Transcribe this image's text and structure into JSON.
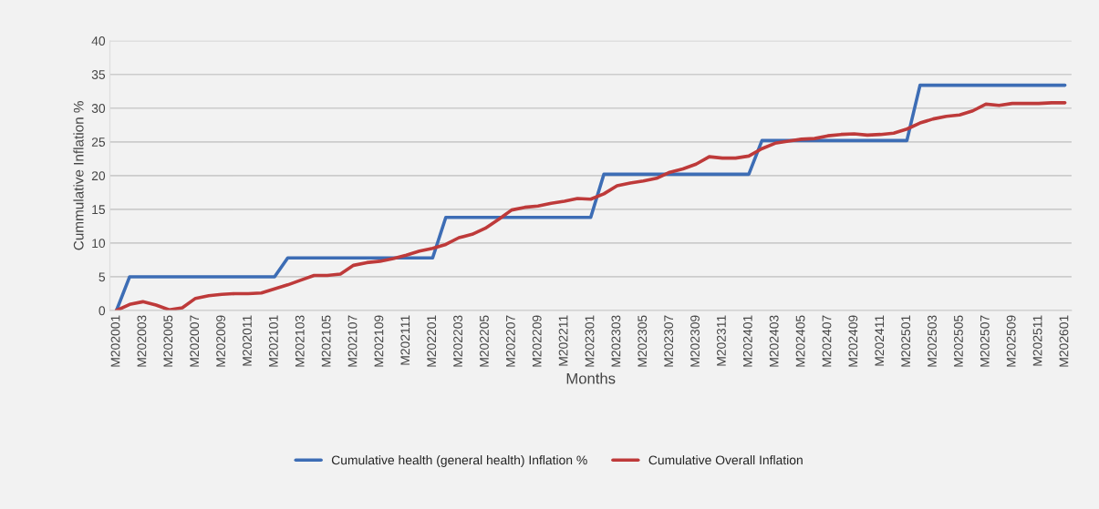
{
  "chart_data": {
    "type": "line",
    "xlabel": "Months",
    "ylabel": "Cummulative Inflation %",
    "categories": [
      "M202001",
      null,
      "M202003",
      null,
      "M202005",
      null,
      "M202007",
      null,
      "M202009",
      null,
      "M202011",
      null,
      "M202101",
      null,
      "M202103",
      null,
      "M202105",
      null,
      "M202107",
      null,
      "M202109",
      null,
      "M202111",
      null,
      "M202201",
      null,
      "M202203",
      null,
      "M202205",
      null,
      "M202207",
      null,
      "M202209",
      null,
      "M202211",
      null,
      "M202301",
      null,
      "M202303",
      null,
      "M202305",
      null,
      "M202307",
      null,
      "M202309",
      null,
      "M202311",
      null,
      "M202401",
      null,
      "M202403",
      null,
      "M202405",
      null,
      "M202407",
      null,
      "M202409",
      null,
      "M202411",
      null,
      "M202501",
      null,
      "M202503",
      null,
      "M202505",
      null,
      "M202507",
      null,
      "M202509",
      null,
      "M202511",
      null,
      "M202601"
    ],
    "series": [
      {
        "name": "Cumulative health (general health) Inflation %",
        "color": "#3d6db5",
        "values": [
          0,
          5,
          5,
          5,
          5,
          5,
          5,
          5,
          5,
          5,
          5,
          5,
          5,
          7.8,
          7.8,
          7.8,
          7.8,
          7.8,
          7.8,
          7.8,
          7.8,
          7.8,
          7.8,
          7.8,
          7.8,
          13.8,
          13.8,
          13.8,
          13.8,
          13.8,
          13.8,
          13.8,
          13.8,
          13.8,
          13.8,
          13.8,
          13.8,
          20.2,
          20.2,
          20.2,
          20.2,
          20.2,
          20.2,
          20.2,
          20.2,
          20.2,
          20.2,
          20.2,
          20.2,
          25.2,
          25.2,
          25.2,
          25.2,
          25.2,
          25.2,
          25.2,
          25.2,
          25.2,
          25.2,
          25.2,
          25.2,
          33.4,
          33.4,
          33.4,
          33.4,
          33.4,
          33.4,
          33.4,
          33.4,
          33.4,
          33.4,
          33.4,
          33.4
        ]
      },
      {
        "name": "Cumulative Overall Inflation",
        "color": "#be3a3a",
        "values": [
          0,
          0.9,
          1.3,
          0.8,
          0.1,
          0.4,
          1.8,
          2.2,
          2.4,
          2.5,
          2.5,
          2.6,
          3.2,
          3.8,
          4.5,
          5.2,
          5.2,
          5.4,
          6.7,
          7.1,
          7.3,
          7.7,
          8.2,
          8.8,
          9.2,
          9.8,
          10.8,
          11.3,
          12.2,
          13.5,
          14.9,
          15.3,
          15.5,
          15.9,
          16.2,
          16.6,
          16.5,
          17.3,
          18.5,
          18.9,
          19.2,
          19.6,
          20.5,
          21.0,
          21.7,
          22.8,
          22.6,
          22.6,
          22.9,
          24.0,
          24.8,
          25.1,
          25.4,
          25.5,
          25.9,
          26.1,
          26.2,
          26.0,
          26.1,
          26.3,
          26.9,
          27.8,
          28.4,
          28.8,
          29.0,
          29.6,
          30.6,
          30.4,
          30.7,
          30.7,
          30.7,
          30.8,
          30.8
        ]
      }
    ],
    "ylim": [
      0,
      40
    ],
    "yticks": [
      0,
      5,
      10,
      15,
      20,
      25,
      30,
      35,
      40
    ],
    "grid": "y",
    "legend": "bottom",
    "marker": "none",
    "line_style": "solid"
  }
}
